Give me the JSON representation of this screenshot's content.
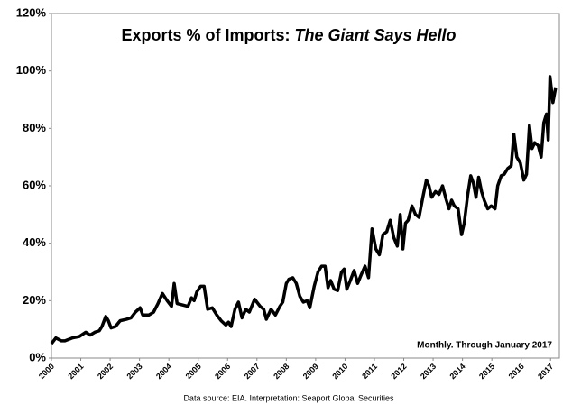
{
  "chart_data": {
    "type": "line",
    "title": "Exports % of Imports:",
    "title_emphasis": "The Giant Says Hello",
    "annotation": "Monthly. Through January 2017",
    "source": "Data source: EIA. Interpretation: Seaport Global Securities",
    "color": "#000000",
    "grid": false,
    "xlim": [
      2000,
      2017.3
    ],
    "xticks": [
      2000,
      2001,
      2002,
      2003,
      2004,
      2005,
      2006,
      2007,
      2008,
      2009,
      2010,
      2011,
      2012,
      2013,
      2014,
      2015,
      2016,
      2017
    ],
    "ylim": [
      0,
      120
    ],
    "yticks": [
      {
        "value": 0,
        "label": "0%"
      },
      {
        "value": 20,
        "label": "20%"
      },
      {
        "value": 40,
        "label": "40%"
      },
      {
        "value": 60,
        "label": "60%"
      },
      {
        "value": 80,
        "label": "80%"
      },
      {
        "value": 100,
        "label": "100%"
      },
      {
        "value": 120,
        "label": "120%"
      }
    ],
    "x": [
      2000.0,
      2000.15,
      2000.34,
      2000.46,
      2000.71,
      2000.95,
      2001.17,
      2001.32,
      2001.48,
      2001.63,
      2001.72,
      2001.85,
      2001.94,
      2002.03,
      2002.18,
      2002.34,
      2002.55,
      2002.71,
      2002.86,
      2003.02,
      2003.11,
      2003.32,
      2003.48,
      2003.63,
      2003.78,
      2003.94,
      2004.09,
      2004.18,
      2004.28,
      2004.46,
      2004.65,
      2004.77,
      2004.86,
      2004.95,
      2005.08,
      2005.2,
      2005.32,
      2005.48,
      2005.63,
      2005.78,
      2005.94,
      2006.03,
      2006.12,
      2006.25,
      2006.37,
      2006.49,
      2006.62,
      2006.74,
      2006.92,
      2007.11,
      2007.23,
      2007.32,
      2007.48,
      2007.63,
      2007.78,
      2007.88,
      2008.0,
      2008.09,
      2008.22,
      2008.34,
      2008.46,
      2008.58,
      2008.71,
      2008.8,
      2008.95,
      2009.08,
      2009.2,
      2009.32,
      2009.42,
      2009.51,
      2009.63,
      2009.75,
      2009.88,
      2009.97,
      2010.06,
      2010.18,
      2010.31,
      2010.43,
      2010.55,
      2010.68,
      2010.8,
      2010.92,
      2011.05,
      2011.17,
      2011.29,
      2011.42,
      2011.54,
      2011.66,
      2011.78,
      2011.88,
      2011.97,
      2012.06,
      2012.15,
      2012.28,
      2012.4,
      2012.52,
      2012.65,
      2012.77,
      2012.86,
      2012.95,
      2013.08,
      2013.2,
      2013.32,
      2013.45,
      2013.54,
      2013.63,
      2013.72,
      2013.85,
      2013.97,
      2014.06,
      2014.18,
      2014.28,
      2014.37,
      2014.46,
      2014.55,
      2014.65,
      2014.74,
      2014.86,
      2014.98,
      2015.11,
      2015.2,
      2015.32,
      2015.42,
      2015.54,
      2015.66,
      2015.75,
      2015.85,
      2015.97,
      2016.09,
      2016.18,
      2016.28,
      2016.37,
      2016.46,
      2016.58,
      2016.68,
      2016.77,
      2016.86,
      2016.92,
      2016.98,
      2017.08,
      2017.17
    ],
    "values": [
      5,
      7,
      6,
      6,
      7,
      7.5,
      9,
      8,
      9,
      9.5,
      11,
      14.5,
      13,
      10.5,
      11,
      13,
      13.5,
      14,
      16,
      17.5,
      15,
      15,
      16,
      19,
      22.5,
      20,
      18,
      26,
      19,
      18.5,
      18,
      21,
      20,
      23,
      25,
      25,
      17,
      17.5,
      15,
      13,
      11.5,
      12.5,
      11,
      17,
      19.5,
      14,
      17,
      16,
      20.5,
      18,
      17,
      13.5,
      17,
      15,
      18,
      19.5,
      26,
      27.5,
      28,
      26,
      21.5,
      19.5,
      20,
      17.5,
      25,
      30,
      32,
      32,
      24.5,
      27,
      24,
      23.5,
      30,
      31,
      24,
      27,
      30.5,
      26,
      29,
      32,
      28,
      45,
      38,
      36,
      43,
      44,
      48,
      42,
      39,
      50,
      38,
      47,
      48,
      53,
      50,
      49,
      56,
      62,
      60,
      56,
      58,
      57,
      60,
      55,
      52,
      55,
      53,
      52,
      43,
      47,
      57,
      63.5,
      61,
      56,
      63,
      58,
      55,
      52,
      53,
      52,
      60,
      63.5,
      64,
      66,
      67,
      78,
      70,
      68,
      62,
      64,
      81,
      73,
      75,
      74,
      70,
      82,
      85,
      76,
      98,
      89,
      94
    ]
  }
}
